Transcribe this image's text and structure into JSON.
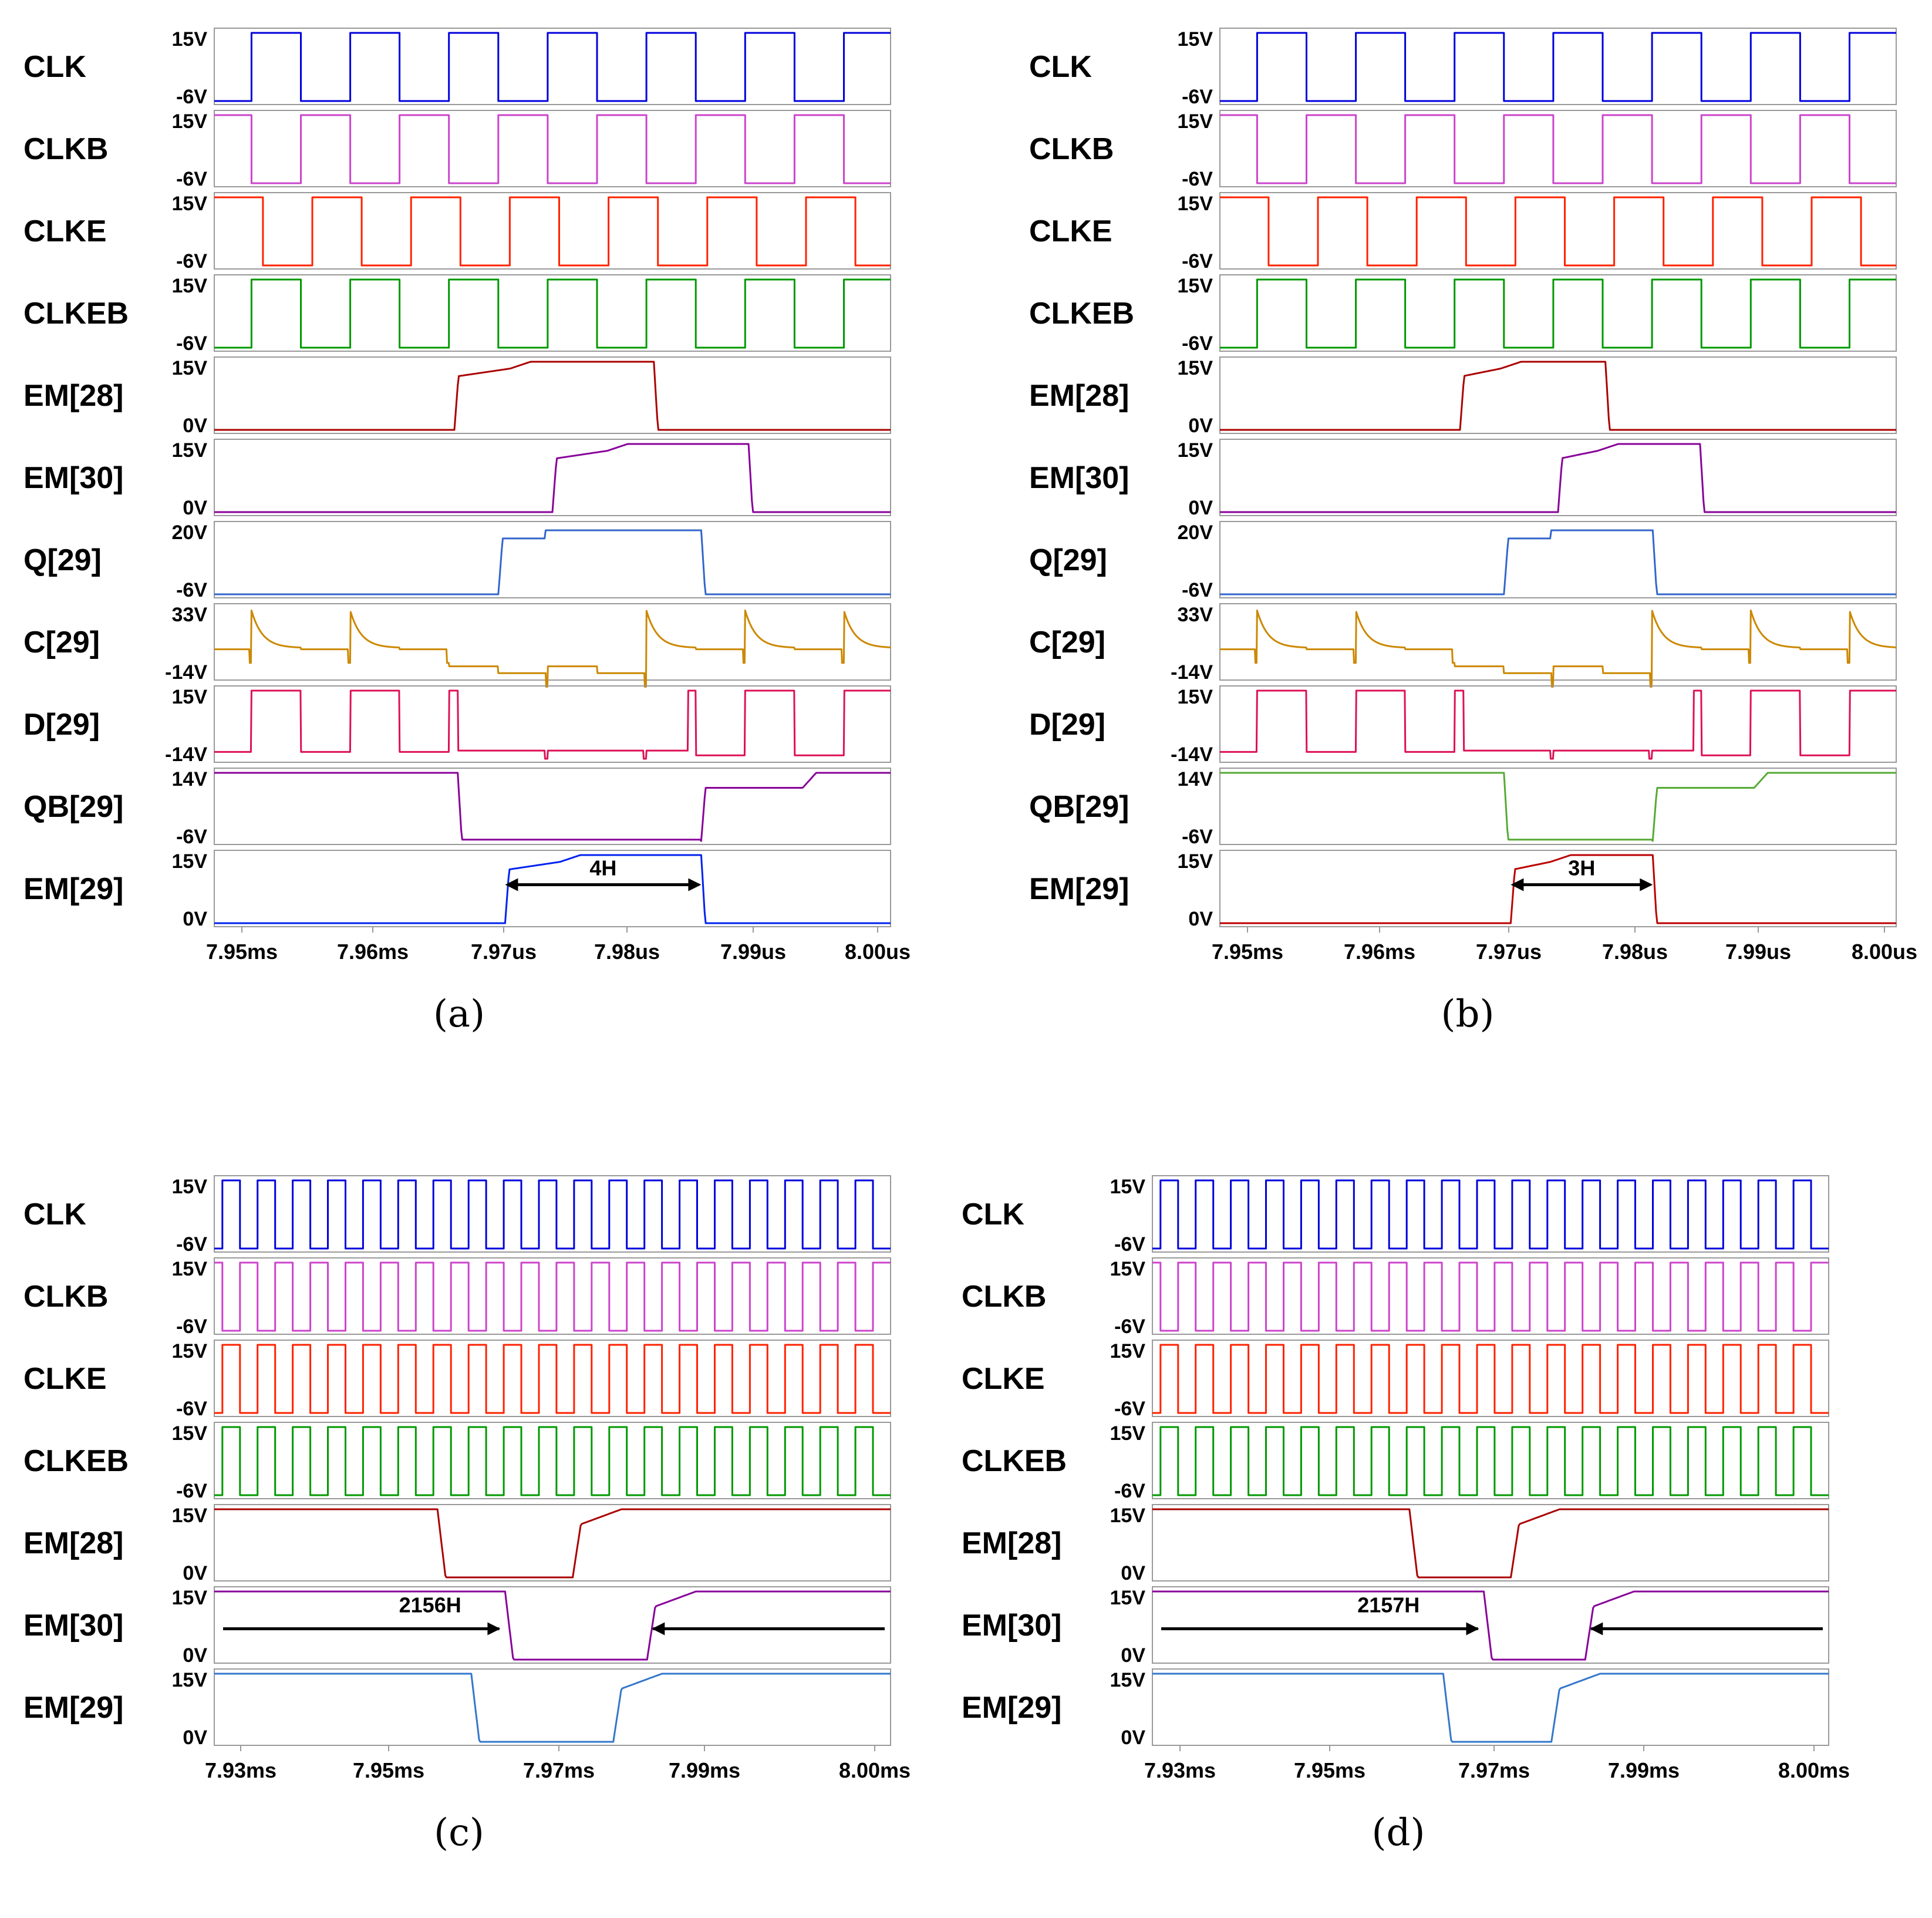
{
  "colors": {
    "CLK": "#0000dd",
    "CLKB": "#cc44cc",
    "CLKE": "#ff2200",
    "CLKEB": "#009900",
    "EM28": "#aa0000",
    "EM30": "#880099",
    "Q29": "#3366cc",
    "C29": "#cc8800",
    "D29": "#dd1155",
    "QB29a": "#880099",
    "QB29b": "#55aa33",
    "EM29a": "#0022ee",
    "EM29b": "#bb0000",
    "EM29cd": "#3377cc"
  },
  "chart_data": [
    {
      "panel": "a",
      "caption": "(a)",
      "type": "line",
      "signals": [
        {
          "name": "CLK",
          "vmax": "15V",
          "vmin": "-6V"
        },
        {
          "name": "CLKB",
          "vmax": "15V",
          "vmin": "-6V"
        },
        {
          "name": "CLKE",
          "vmax": "15V",
          "vmin": "-6V"
        },
        {
          "name": "CLKEB",
          "vmax": "15V",
          "vmin": "-6V"
        },
        {
          "name": "EM[28]",
          "vmax": "15V",
          "vmin": "0V"
        },
        {
          "name": "EM[30]",
          "vmax": "15V",
          "vmin": "0V"
        },
        {
          "name": "Q[29]",
          "vmax": "20V",
          "vmin": "-6V"
        },
        {
          "name": "C[29]",
          "vmax": "33V",
          "vmin": "-14V"
        },
        {
          "name": "D[29]",
          "vmax": "15V",
          "vmin": "-14V"
        },
        {
          "name": "QB[29]",
          "vmax": "14V",
          "vmin": "-6V"
        },
        {
          "name": "EM[29]",
          "vmax": "15V",
          "vmin": "0V"
        }
      ],
      "x_ticks": [
        "7.95ms",
        "7.96ms",
        "7.97us",
        "7.98us",
        "7.99us",
        "8.00us"
      ],
      "annotation": "4H",
      "em29_width_H": 4
    },
    {
      "panel": "b",
      "caption": "(b)",
      "type": "line",
      "signals": [
        {
          "name": "CLK",
          "vmax": "15V",
          "vmin": "-6V"
        },
        {
          "name": "CLKB",
          "vmax": "15V",
          "vmin": "-6V"
        },
        {
          "name": "CLKE",
          "vmax": "15V",
          "vmin": "-6V"
        },
        {
          "name": "CLKEB",
          "vmax": "15V",
          "vmin": "-6V"
        },
        {
          "name": "EM[28]",
          "vmax": "15V",
          "vmin": "0V"
        },
        {
          "name": "EM[30]",
          "vmax": "15V",
          "vmin": "0V"
        },
        {
          "name": "Q[29]",
          "vmax": "20V",
          "vmin": "-6V"
        },
        {
          "name": "C[29]",
          "vmax": "33V",
          "vmin": "-14V"
        },
        {
          "name": "D[29]",
          "vmax": "15V",
          "vmin": "-14V"
        },
        {
          "name": "QB[29]",
          "vmax": "14V",
          "vmin": "-6V"
        },
        {
          "name": "EM[29]",
          "vmax": "15V",
          "vmin": "0V"
        }
      ],
      "x_ticks": [
        "7.95ms",
        "7.96ms",
        "7.97us",
        "7.98us",
        "7.99us",
        "8.00us"
      ],
      "annotation": "3H",
      "em29_width_H": 3
    },
    {
      "panel": "c",
      "caption": "(c)",
      "type": "line",
      "signals": [
        {
          "name": "CLK",
          "vmax": "15V",
          "vmin": "-6V"
        },
        {
          "name": "CLKB",
          "vmax": "15V",
          "vmin": "-6V"
        },
        {
          "name": "CLKE",
          "vmax": "15V",
          "vmin": "-6V"
        },
        {
          "name": "CLKEB",
          "vmax": "15V",
          "vmin": "-6V"
        },
        {
          "name": "EM[28]",
          "vmax": "15V",
          "vmin": "0V"
        },
        {
          "name": "EM[30]",
          "vmax": "15V",
          "vmin": "0V"
        },
        {
          "name": "EM[29]",
          "vmax": "15V",
          "vmin": "0V"
        }
      ],
      "x_ticks": [
        "7.93ms",
        "7.95ms",
        "7.97ms",
        "7.99ms",
        "8.00ms"
      ],
      "annotation": "2156H"
    },
    {
      "panel": "d",
      "caption": "(d)",
      "type": "line",
      "signals": [
        {
          "name": "CLK",
          "vmax": "15V",
          "vmin": "-6V"
        },
        {
          "name": "CLKB",
          "vmax": "15V",
          "vmin": "-6V"
        },
        {
          "name": "CLKE",
          "vmax": "15V",
          "vmin": "-6V"
        },
        {
          "name": "CLKEB",
          "vmax": "15V",
          "vmin": "-6V"
        },
        {
          "name": "EM[28]",
          "vmax": "15V",
          "vmin": "0V"
        },
        {
          "name": "EM[30]",
          "vmax": "15V",
          "vmin": "0V"
        },
        {
          "name": "EM[29]",
          "vmax": "15V",
          "vmin": "0V"
        }
      ],
      "x_ticks": [
        "7.93ms",
        "7.95ms",
        "7.97ms",
        "7.99ms",
        "8.00ms"
      ],
      "annotation": "2157H"
    }
  ]
}
